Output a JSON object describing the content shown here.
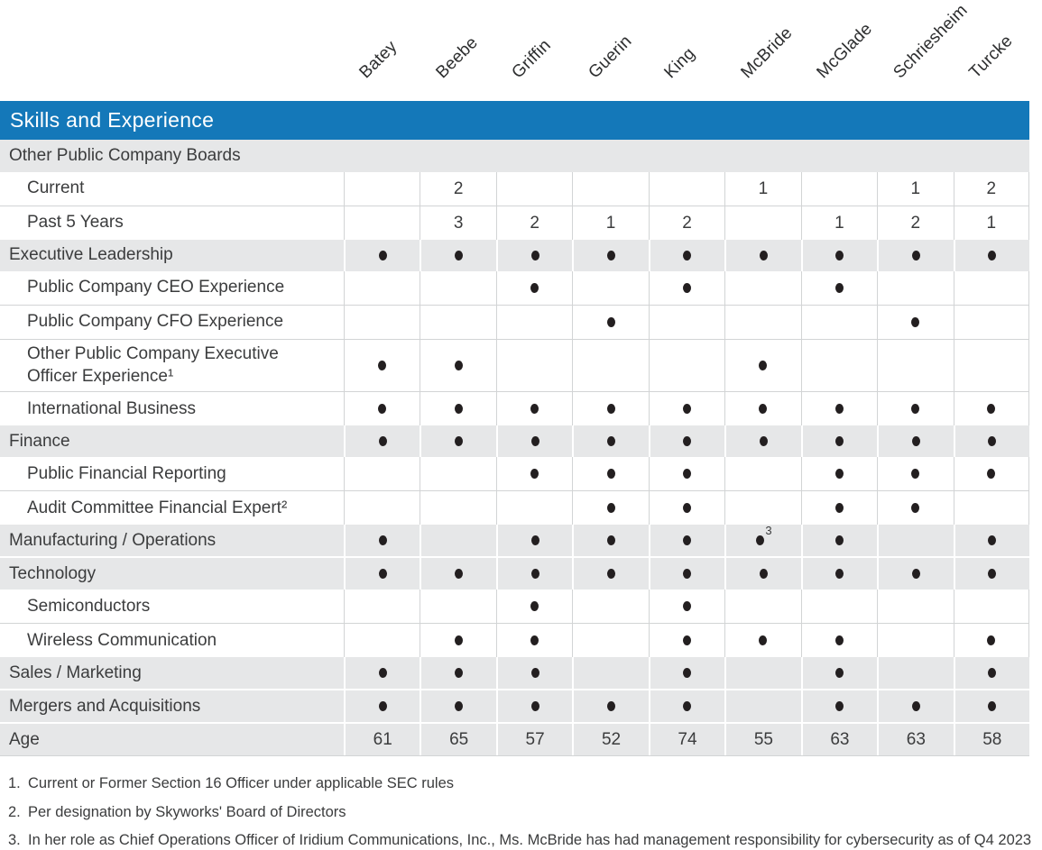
{
  "title": "Skills and Experience",
  "directors": [
    "Batey",
    "Beebe",
    "Griffin",
    "Guerin",
    "King",
    "McBride",
    "McGlade",
    "Schriesheim",
    "Turcke"
  ],
  "rows": [
    {
      "label": "Other Public Company Boards",
      "type": "section",
      "cells": null
    },
    {
      "label": "Current",
      "type": "sub",
      "cells": [
        "",
        "2",
        "",
        "",
        "",
        "1",
        "",
        "1",
        "2"
      ]
    },
    {
      "label": "Past 5 Years",
      "type": "sub",
      "cells": [
        "",
        "3",
        "2",
        "1",
        "2",
        "",
        "1",
        "2",
        "1"
      ]
    },
    {
      "label": "Executive Leadership",
      "type": "section",
      "cells": [
        "●",
        "●",
        "●",
        "●",
        "●",
        "●",
        "●",
        "●",
        "●"
      ]
    },
    {
      "label": "Public Company CEO Experience",
      "type": "sub",
      "cells": [
        "",
        "",
        "●",
        "",
        "●",
        "",
        "●",
        "",
        ""
      ]
    },
    {
      "label": "Public Company CFO Experience",
      "type": "sub",
      "cells": [
        "",
        "",
        "",
        "●",
        "",
        "",
        "",
        "●",
        ""
      ]
    },
    {
      "label": "Other Public Company Executive Officer Experience¹",
      "type": "sub",
      "cells": [
        "●",
        "●",
        "",
        "",
        "",
        "●",
        "",
        "",
        ""
      ]
    },
    {
      "label": "International Business",
      "type": "sub",
      "cells": [
        "●",
        "●",
        "●",
        "●",
        "●",
        "●",
        "●",
        "●",
        "●"
      ]
    },
    {
      "label": "Finance",
      "type": "section",
      "cells": [
        "●",
        "●",
        "●",
        "●",
        "●",
        "●",
        "●",
        "●",
        "●"
      ]
    },
    {
      "label": "Public Financial Reporting",
      "type": "sub",
      "cells": [
        "",
        "",
        "●",
        "●",
        "●",
        "",
        "●",
        "●",
        "●"
      ]
    },
    {
      "label": "Audit Committee Financial Expert²",
      "type": "sub",
      "cells": [
        "",
        "",
        "",
        "●",
        "●",
        "",
        "●",
        "●",
        ""
      ]
    },
    {
      "label": "Manufacturing / Operations",
      "type": "section",
      "cells": [
        "●",
        "",
        "●",
        "●",
        "●",
        "●3",
        "●",
        "",
        "●"
      ]
    },
    {
      "label": "Technology",
      "type": "section",
      "cells": [
        "●",
        "●",
        "●",
        "●",
        "●",
        "●",
        "●",
        "●",
        "●"
      ]
    },
    {
      "label": "Semiconductors",
      "type": "sub",
      "cells": [
        "",
        "",
        "●",
        "",
        "●",
        "",
        "",
        "",
        ""
      ]
    },
    {
      "label": "Wireless Communication",
      "type": "sub",
      "cells": [
        "",
        "●",
        "●",
        "",
        "●",
        "●",
        "●",
        "",
        "●"
      ]
    },
    {
      "label": "Sales / Marketing",
      "type": "section",
      "cells": [
        "●",
        "●",
        "●",
        "",
        "●",
        "",
        "●",
        "",
        "●"
      ]
    },
    {
      "label": "Mergers and Acquisitions",
      "type": "section",
      "cells": [
        "●",
        "●",
        "●",
        "●",
        "●",
        "",
        "●",
        "●",
        "●"
      ]
    },
    {
      "label": "Age",
      "type": "section",
      "cells": [
        "61",
        "65",
        "57",
        "52",
        "74",
        "55",
        "63",
        "63",
        "58"
      ]
    }
  ],
  "footnotes": [
    {
      "num": "1.",
      "text": "Current or Former Section 16 Officer under applicable SEC rules"
    },
    {
      "num": "2.",
      "text": "Per designation by Skyworks' Board of Directors"
    },
    {
      "num": "3.",
      "text": "In her role as Chief Operations Officer of Iridium Communications, Inc., Ms. McBride has had management responsibility for cybersecurity as of Q4 2023"
    }
  ],
  "colors": {
    "accent": "#1478b9",
    "section_bg": "#e6e7e8",
    "border": "#d2d4d5",
    "text": "#3b3c3d",
    "dot": "#231f20"
  }
}
